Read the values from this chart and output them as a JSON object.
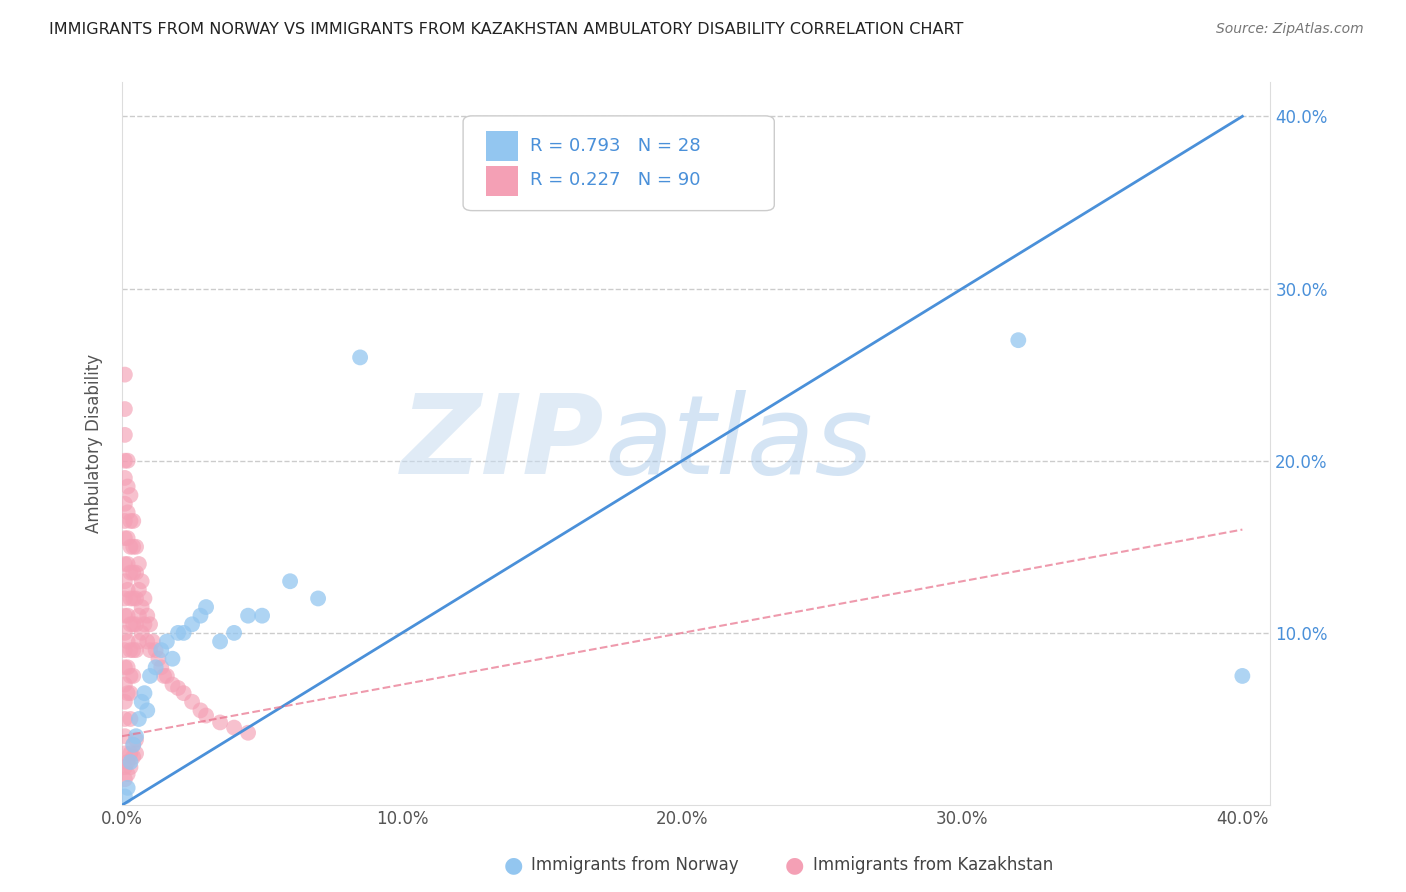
{
  "title": "IMMIGRANTS FROM NORWAY VS IMMIGRANTS FROM KAZAKHSTAN AMBULATORY DISABILITY CORRELATION CHART",
  "source": "Source: ZipAtlas.com",
  "ylabel": "Ambulatory Disability",
  "legend_label1": "Immigrants from Norway",
  "legend_label2": "Immigrants from Kazakhstan",
  "R1": 0.793,
  "N1": 28,
  "R2": 0.227,
  "N2": 90,
  "color_norway": "#93C6F0",
  "color_kazakhstan": "#F4A0B5",
  "color_norway_line": "#4A90D9",
  "color_kazakhstan_line": "#E8708A",
  "norway_x": [
    0.001,
    0.002,
    0.003,
    0.004,
    0.005,
    0.006,
    0.007,
    0.008,
    0.009,
    0.01,
    0.012,
    0.014,
    0.016,
    0.018,
    0.02,
    0.022,
    0.025,
    0.028,
    0.03,
    0.035,
    0.04,
    0.045,
    0.05,
    0.06,
    0.07,
    0.085,
    0.32,
    0.4
  ],
  "norway_y": [
    0.005,
    0.01,
    0.025,
    0.035,
    0.04,
    0.05,
    0.06,
    0.065,
    0.055,
    0.075,
    0.08,
    0.09,
    0.095,
    0.085,
    0.1,
    0.1,
    0.105,
    0.11,
    0.115,
    0.095,
    0.1,
    0.11,
    0.11,
    0.13,
    0.12,
    0.26,
    0.27,
    0.075
  ],
  "kazakhstan_x": [
    0.001,
    0.001,
    0.001,
    0.001,
    0.001,
    0.001,
    0.001,
    0.001,
    0.001,
    0.001,
    0.001,
    0.001,
    0.001,
    0.001,
    0.001,
    0.001,
    0.001,
    0.001,
    0.001,
    0.001,
    0.002,
    0.002,
    0.002,
    0.002,
    0.002,
    0.002,
    0.002,
    0.002,
    0.002,
    0.002,
    0.003,
    0.003,
    0.003,
    0.003,
    0.003,
    0.003,
    0.003,
    0.003,
    0.003,
    0.003,
    0.004,
    0.004,
    0.004,
    0.004,
    0.004,
    0.004,
    0.004,
    0.005,
    0.005,
    0.005,
    0.005,
    0.005,
    0.006,
    0.006,
    0.006,
    0.006,
    0.007,
    0.007,
    0.007,
    0.008,
    0.008,
    0.009,
    0.009,
    0.01,
    0.01,
    0.011,
    0.012,
    0.013,
    0.014,
    0.015,
    0.016,
    0.018,
    0.02,
    0.022,
    0.025,
    0.028,
    0.03,
    0.035,
    0.04,
    0.045,
    0.001,
    0.001,
    0.002,
    0.002,
    0.003,
    0.003,
    0.004,
    0.004,
    0.005,
    0.005
  ],
  "kazakhstan_y": [
    0.25,
    0.23,
    0.215,
    0.2,
    0.19,
    0.175,
    0.165,
    0.155,
    0.14,
    0.13,
    0.12,
    0.11,
    0.1,
    0.09,
    0.08,
    0.07,
    0.06,
    0.05,
    0.04,
    0.03,
    0.2,
    0.185,
    0.17,
    0.155,
    0.14,
    0.125,
    0.11,
    0.095,
    0.08,
    0.065,
    0.18,
    0.165,
    0.15,
    0.135,
    0.12,
    0.105,
    0.09,
    0.075,
    0.065,
    0.05,
    0.165,
    0.15,
    0.135,
    0.12,
    0.105,
    0.09,
    0.075,
    0.15,
    0.135,
    0.12,
    0.105,
    0.09,
    0.14,
    0.125,
    0.11,
    0.095,
    0.13,
    0.115,
    0.1,
    0.12,
    0.105,
    0.11,
    0.095,
    0.105,
    0.09,
    0.095,
    0.09,
    0.085,
    0.08,
    0.075,
    0.075,
    0.07,
    0.068,
    0.065,
    0.06,
    0.055,
    0.052,
    0.048,
    0.045,
    0.042,
    0.022,
    0.015,
    0.025,
    0.018,
    0.03,
    0.022,
    0.035,
    0.028,
    0.038,
    0.03
  ],
  "xlim": [
    0.0,
    0.41
  ],
  "ylim": [
    0.0,
    0.42
  ],
  "xticks": [
    0.0,
    0.1,
    0.2,
    0.3,
    0.4
  ],
  "yticks": [
    0.1,
    0.2,
    0.3,
    0.4
  ],
  "watermark_zip": "ZIP",
  "watermark_atlas": "atlas",
  "background_color": "#FFFFFF",
  "grid_color": "#CCCCCC",
  "norway_line_x": [
    0.0,
    0.4
  ],
  "norway_line_y": [
    0.0,
    0.4
  ],
  "kazakhstan_line_x": [
    0.0,
    0.4
  ],
  "kazakhstan_line_y": [
    0.04,
    0.16
  ]
}
